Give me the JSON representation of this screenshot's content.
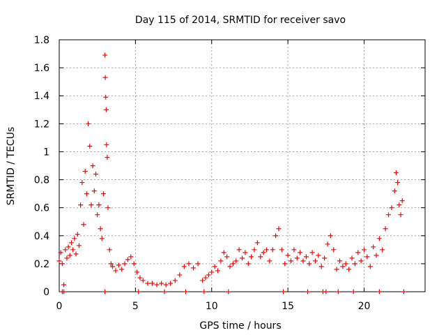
{
  "chart_data": {
    "type": "scatter",
    "title": "Day 115 of 2014, SRMTID for receiver savo",
    "xlabel": "GPS time / hours",
    "ylabel": "SRMTID / TECUs",
    "xlim": [
      0,
      24
    ],
    "ylim": [
      0,
      1.8
    ],
    "x_ticks": [
      0,
      5,
      10,
      15,
      20
    ],
    "y_ticks": [
      0,
      0.2,
      0.4,
      0.6,
      0.8,
      1,
      1.2,
      1.4,
      1.6,
      1.8
    ],
    "x_tick_labels": [
      "0",
      "5",
      "10",
      "15",
      "20"
    ],
    "y_tick_labels": [
      "0",
      "0.2",
      "0.4",
      "0.6",
      "0.8",
      "1",
      "1.2",
      "1.4",
      "1.6",
      "1.8"
    ],
    "grid": true,
    "marker": "+",
    "color": "#ff0000",
    "series": [
      {
        "name": "SRMTID",
        "points": [
          [
            0.0,
            0.22
          ],
          [
            0.1,
            0.28
          ],
          [
            0.2,
            0.2
          ],
          [
            0.3,
            0.05
          ],
          [
            0.4,
            0.3
          ],
          [
            0.5,
            0.24
          ],
          [
            0.6,
            0.32
          ],
          [
            0.7,
            0.26
          ],
          [
            0.8,
            0.35
          ],
          [
            0.9,
            0.3
          ],
          [
            1.0,
            0.38
          ],
          [
            1.1,
            0.27
          ],
          [
            1.2,
            0.41
          ],
          [
            1.3,
            0.33
          ],
          [
            1.4,
            0.62
          ],
          [
            1.5,
            0.78
          ],
          [
            1.6,
            0.48
          ],
          [
            1.7,
            0.86
          ],
          [
            1.8,
            0.7
          ],
          [
            1.9,
            1.2
          ],
          [
            2.0,
            1.04
          ],
          [
            2.1,
            0.62
          ],
          [
            2.2,
            0.9
          ],
          [
            2.3,
            0.72
          ],
          [
            2.4,
            0.84
          ],
          [
            2.5,
            0.55
          ],
          [
            2.6,
            0.62
          ],
          [
            2.7,
            0.45
          ],
          [
            2.8,
            0.38
          ],
          [
            2.9,
            0.7
          ],
          [
            3.0,
            1.69
          ],
          [
            3.02,
            1.53
          ],
          [
            3.05,
            1.39
          ],
          [
            3.08,
            1.3
          ],
          [
            3.1,
            1.05
          ],
          [
            3.15,
            0.96
          ],
          [
            3.2,
            0.6
          ],
          [
            3.3,
            0.3
          ],
          [
            3.4,
            0.2
          ],
          [
            3.5,
            0.18
          ],
          [
            3.7,
            0.15
          ],
          [
            3.9,
            0.19
          ],
          [
            4.1,
            0.16
          ],
          [
            4.3,
            0.2
          ],
          [
            4.5,
            0.23
          ],
          [
            4.7,
            0.25
          ],
          [
            4.9,
            0.2
          ],
          [
            5.1,
            0.14
          ],
          [
            5.3,
            0.1
          ],
          [
            5.5,
            0.08
          ],
          [
            5.8,
            0.06
          ],
          [
            6.1,
            0.06
          ],
          [
            6.4,
            0.05
          ],
          [
            6.7,
            0.06
          ],
          [
            7.0,
            0.05
          ],
          [
            7.3,
            0.06
          ],
          [
            7.6,
            0.08
          ],
          [
            7.9,
            0.12
          ],
          [
            8.2,
            0.18
          ],
          [
            8.5,
            0.2
          ],
          [
            8.8,
            0.17
          ],
          [
            9.1,
            0.2
          ],
          [
            9.4,
            0.08
          ],
          [
            9.6,
            0.1
          ],
          [
            9.8,
            0.12
          ],
          [
            10.0,
            0.14
          ],
          [
            10.2,
            0.18
          ],
          [
            10.4,
            0.15
          ],
          [
            10.6,
            0.22
          ],
          [
            10.8,
            0.28
          ],
          [
            11.0,
            0.25
          ],
          [
            11.2,
            0.18
          ],
          [
            11.4,
            0.2
          ],
          [
            11.6,
            0.22
          ],
          [
            11.8,
            0.3
          ],
          [
            12.0,
            0.24
          ],
          [
            12.2,
            0.28
          ],
          [
            12.4,
            0.2
          ],
          [
            12.6,
            0.25
          ],
          [
            12.8,
            0.3
          ],
          [
            13.0,
            0.35
          ],
          [
            13.2,
            0.25
          ],
          [
            13.4,
            0.28
          ],
          [
            13.6,
            0.3
          ],
          [
            13.8,
            0.22
          ],
          [
            14.0,
            0.3
          ],
          [
            14.2,
            0.4
          ],
          [
            14.4,
            0.45
          ],
          [
            14.6,
            0.3
          ],
          [
            14.8,
            0.2
          ],
          [
            15.0,
            0.26
          ],
          [
            15.2,
            0.22
          ],
          [
            15.4,
            0.3
          ],
          [
            15.6,
            0.24
          ],
          [
            15.8,
            0.28
          ],
          [
            16.0,
            0.22
          ],
          [
            16.2,
            0.25
          ],
          [
            16.4,
            0.2
          ],
          [
            16.6,
            0.28
          ],
          [
            16.8,
            0.22
          ],
          [
            17.0,
            0.26
          ],
          [
            17.2,
            0.18
          ],
          [
            17.4,
            0.24
          ],
          [
            17.6,
            0.34
          ],
          [
            17.8,
            0.4
          ],
          [
            18.0,
            0.3
          ],
          [
            18.2,
            0.16
          ],
          [
            18.4,
            0.22
          ],
          [
            18.6,
            0.18
          ],
          [
            18.8,
            0.2
          ],
          [
            19.0,
            0.16
          ],
          [
            19.2,
            0.24
          ],
          [
            19.4,
            0.2
          ],
          [
            19.6,
            0.28
          ],
          [
            19.8,
            0.22
          ],
          [
            20.0,
            0.3
          ],
          [
            20.2,
            0.25
          ],
          [
            20.4,
            0.18
          ],
          [
            20.6,
            0.32
          ],
          [
            20.8,
            0.26
          ],
          [
            21.0,
            0.38
          ],
          [
            21.2,
            0.3
          ],
          [
            21.4,
            0.45
          ],
          [
            21.6,
            0.55
          ],
          [
            21.8,
            0.6
          ],
          [
            22.0,
            0.72
          ],
          [
            22.1,
            0.85
          ],
          [
            22.2,
            0.78
          ],
          [
            22.3,
            0.62
          ],
          [
            22.4,
            0.55
          ],
          [
            22.5,
            0.65
          ]
        ]
      }
    ],
    "zero_markers_x": [
      0.2,
      0.3,
      3.0,
      5.2,
      6.9,
      8.3,
      9.5,
      11.1,
      14.7,
      16.3,
      17.3,
      17.5,
      18.3,
      19.3,
      21.0,
      22.6
    ]
  }
}
